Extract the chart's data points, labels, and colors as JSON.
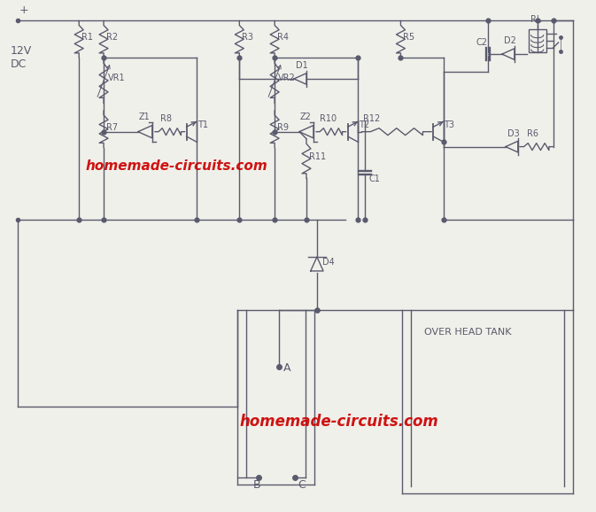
{
  "bg_color": "#f0f0ea",
  "line_color": "#5a5a6e",
  "text_color": "#5a5a6e",
  "watermark_color": "#cc0000",
  "watermark1": "homemade-circuits.com",
  "watermark2": "homemade-circuits.com",
  "tank_label": "OVER HEAD TANK",
  "label_12v": "12V\nDC",
  "plus_sign": "+"
}
